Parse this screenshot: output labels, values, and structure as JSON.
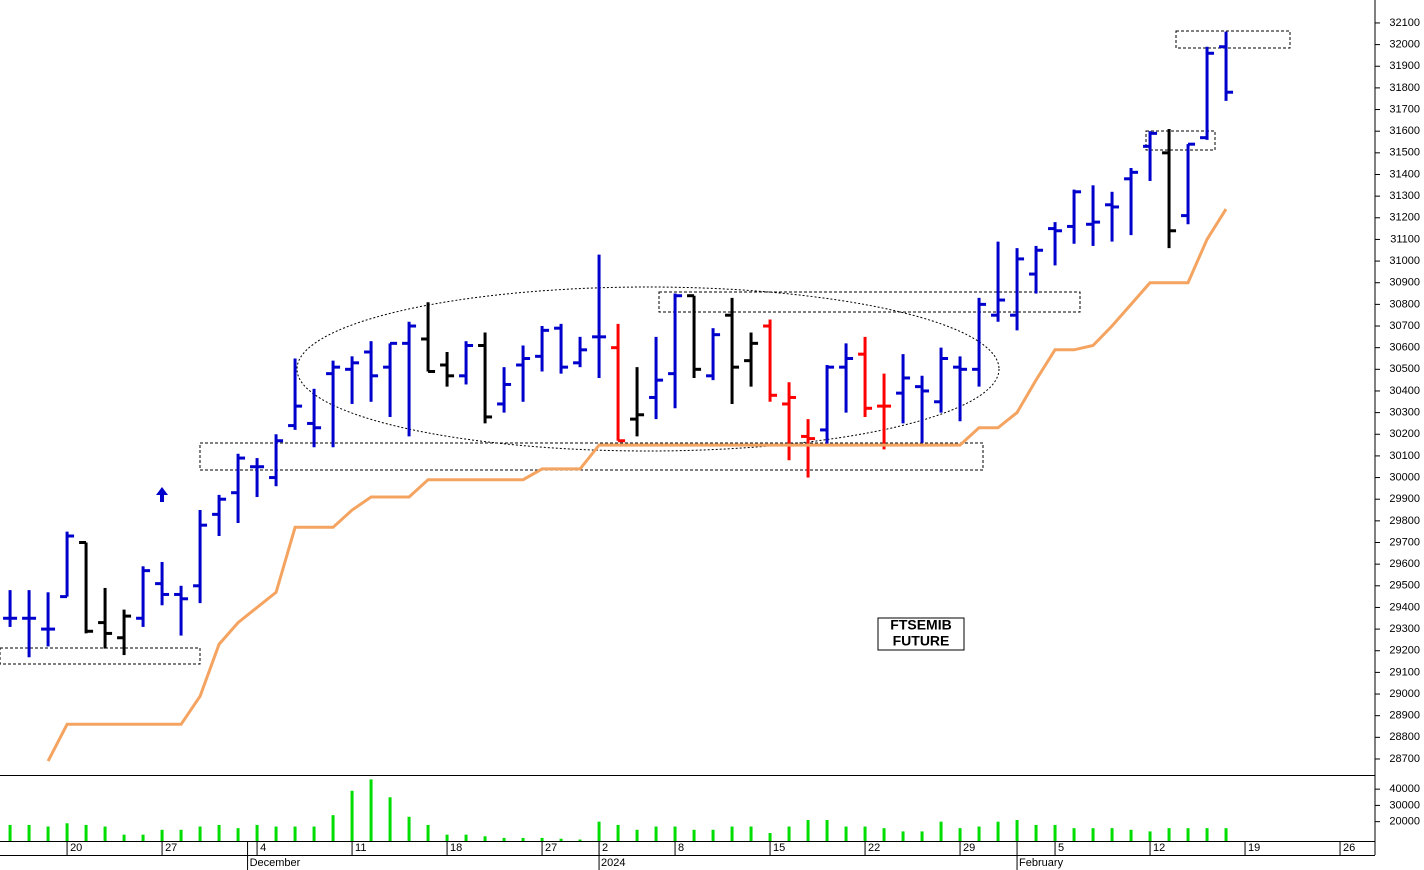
{
  "chart_data": [
    {
      "type": "ohlc",
      "annotation": [
        "FTSEMIB",
        "FUTURE"
      ],
      "open": [
        29350,
        29350,
        29300,
        29450,
        29700,
        29330,
        29260,
        29350,
        29510,
        29460,
        29500,
        29830,
        29930,
        30050,
        30000,
        30240,
        30250,
        30480,
        30500,
        30580,
        30510,
        30620,
        30640,
        30520,
        30470,
        30610,
        30340,
        30520,
        30560,
        30690,
        30530,
        30650,
        30600,
        30270,
        30370,
        30480,
        30840,
        30470,
        30750,
        30540,
        30700,
        30340,
        30190,
        30220,
        30510,
        30570,
        30330,
        30390,
        30420,
        30350,
        30510,
        30500,
        30750,
        30750,
        30940,
        31150,
        31160,
        31170,
        31260,
        31380,
        31530,
        31500,
        31210,
        31570,
        31990
      ],
      "high": [
        29480,
        29480,
        29470,
        29750,
        29700,
        29490,
        29390,
        29590,
        29610,
        29500,
        29850,
        29920,
        30110,
        30090,
        30200,
        30550,
        30410,
        30540,
        30560,
        30630,
        30620,
        30720,
        30810,
        30580,
        30630,
        30670,
        30510,
        30610,
        30700,
        30710,
        30650,
        31030,
        30710,
        30510,
        30650,
        30850,
        30840,
        30690,
        30830,
        30670,
        30730,
        30440,
        30270,
        30520,
        30620,
        30650,
        30480,
        30570,
        30470,
        30600,
        30560,
        30830,
        31090,
        31060,
        31070,
        31180,
        31330,
        31350,
        31320,
        31430,
        31600,
        31610,
        31540,
        31990,
        32060
      ],
      "low": [
        29310,
        29170,
        29220,
        29450,
        29280,
        29210,
        29180,
        29310,
        29410,
        29270,
        29420,
        29730,
        29790,
        29910,
        29960,
        30220,
        30140,
        30140,
        30340,
        30350,
        30280,
        30190,
        30490,
        30420,
        30430,
        30250,
        30300,
        30350,
        30490,
        30480,
        30510,
        30460,
        30170,
        30190,
        30270,
        30320,
        30460,
        30450,
        30340,
        30420,
        30350,
        30080,
        30000,
        30150,
        30300,
        30280,
        30130,
        30250,
        30160,
        30300,
        30260,
        30420,
        30720,
        30680,
        30850,
        30980,
        31080,
        31070,
        31090,
        31120,
        31370,
        31060,
        31170,
        31560,
        31740
      ],
      "close": [
        29350,
        29350,
        29300,
        29730,
        29290,
        29280,
        29360,
        29570,
        29460,
        29440,
        29780,
        29900,
        30090,
        30050,
        30170,
        30330,
        30230,
        30510,
        30530,
        30470,
        30620,
        30700,
        30490,
        30470,
        30610,
        30280,
        30430,
        30550,
        30680,
        30510,
        30590,
        30650,
        30170,
        30290,
        30450,
        30840,
        30500,
        30660,
        30510,
        30620,
        30380,
        30370,
        30180,
        30510,
        30550,
        30320,
        30330,
        30460,
        30400,
        30550,
        30500,
        30800,
        30820,
        31010,
        31050,
        31140,
        31320,
        31180,
        31250,
        31410,
        31590,
        31140,
        31540,
        31960,
        31780
      ],
      "colors": [
        "#0000cc",
        "#0000cc",
        "#0000cc",
        "#0000cc",
        "#000000",
        "#000000",
        "#000000",
        "#0000cc",
        "#0000cc",
        "#0000cc",
        "#0000cc",
        "#0000cc",
        "#0000cc",
        "#0000cc",
        "#0000cc",
        "#0000cc",
        "#0000cc",
        "#0000cc",
        "#0000cc",
        "#0000cc",
        "#0000cc",
        "#0000cc",
        "#000000",
        "#000000",
        "#0000cc",
        "#000000",
        "#0000cc",
        "#0000cc",
        "#0000cc",
        "#0000cc",
        "#0000cc",
        "#0000cc",
        "#ff0000",
        "#000000",
        "#0000cc",
        "#0000cc",
        "#000000",
        "#0000cc",
        "#000000",
        "#000000",
        "#ff0000",
        "#ff0000",
        "#ff0000",
        "#0000cc",
        "#0000cc",
        "#ff0000",
        "#ff0000",
        "#0000cc",
        "#0000cc",
        "#0000cc",
        "#0000cc",
        "#0000cc",
        "#0000cc",
        "#0000cc",
        "#0000cc",
        "#0000cc",
        "#0000cc",
        "#0000cc",
        "#0000cc",
        "#0000cc",
        "#0000cc",
        "#000000",
        "#0000cc",
        "#0000cc",
        "#0000cc"
      ],
      "overlay_line": {
        "type": "line",
        "color": "#f4a460",
        "values": [
          null,
          null,
          28690,
          28860,
          28860,
          28860,
          28860,
          28860,
          28860,
          28860,
          28990,
          29230,
          29330,
          29400,
          29470,
          29770,
          29770,
          29770,
          29850,
          29910,
          29910,
          29910,
          29990,
          29990,
          29990,
          29990,
          29990,
          29990,
          30040,
          30040,
          30040,
          30150,
          30150,
          30150,
          30150,
          30150,
          30150,
          30150,
          30150,
          30150,
          30150,
          30150,
          30150,
          30150,
          30150,
          30150,
          30150,
          30150,
          30150,
          30150,
          30150,
          30230,
          30230,
          30300,
          30450,
          30590,
          30590,
          30610,
          30700,
          30800,
          30900,
          30900,
          30900,
          31100,
          31240
        ]
      },
      "xlim": [
        -0.53,
        71.84
      ],
      "xticks": [
        {
          "value": 3,
          "label": "20"
        },
        {
          "value": 8,
          "label": "27"
        },
        {
          "value": 13,
          "label": "4"
        },
        {
          "value": 18,
          "label": "11"
        },
        {
          "value": 23,
          "label": "18"
        },
        {
          "value": 28,
          "label": "27"
        },
        {
          "value": 31,
          "label": "2"
        },
        {
          "value": 35,
          "label": "8"
        },
        {
          "value": 40,
          "label": "15"
        },
        {
          "value": 45,
          "label": "22"
        },
        {
          "value": 50,
          "label": "29"
        },
        {
          "value": 55,
          "label": "5"
        },
        {
          "value": 60,
          "label": "12"
        },
        {
          "value": 65,
          "label": "19"
        },
        {
          "value": 70,
          "label": "26"
        }
      ],
      "month_ticks": [
        {
          "value": 12.5,
          "label": "December"
        },
        {
          "value": 31,
          "label": "2024"
        },
        {
          "value": 53,
          "label": "February"
        }
      ],
      "ylim": [
        28626,
        32206
      ],
      "yticks": [
        28700,
        28800,
        28900,
        29000,
        29100,
        29200,
        29300,
        29400,
        29500,
        29600,
        29700,
        29800,
        29900,
        30000,
        30100,
        30200,
        30300,
        30400,
        30500,
        30600,
        30700,
        30800,
        30900,
        31000,
        31100,
        31200,
        31300,
        31400,
        31500,
        31600,
        31700,
        31800,
        31900,
        32000,
        32100
      ]
    },
    {
      "type": "bar",
      "color": "#00dd00",
      "values": [
        18000,
        18000,
        17000,
        19000,
        18000,
        17000,
        12000,
        12000,
        15000,
        15000,
        17000,
        18000,
        16000,
        18000,
        17000,
        17000,
        17000,
        24000,
        39000,
        46000,
        35000,
        23000,
        18000,
        12000,
        12000,
        11000,
        10000,
        10000,
        10000,
        9500,
        9000,
        20000,
        18000,
        15000,
        17000,
        17000,
        15000,
        15000,
        17000,
        17000,
        13000,
        17000,
        21000,
        21000,
        17000,
        17000,
        16000,
        14000,
        14000,
        20000,
        16000,
        17000,
        20000,
        21000,
        18000,
        18000,
        16000,
        16000,
        16000,
        15000,
        14000,
        16000,
        16000,
        16000,
        16000
      ],
      "ylim": [
        8100,
        48100
      ],
      "yticks": [
        20000,
        30000,
        40000
      ]
    }
  ]
}
